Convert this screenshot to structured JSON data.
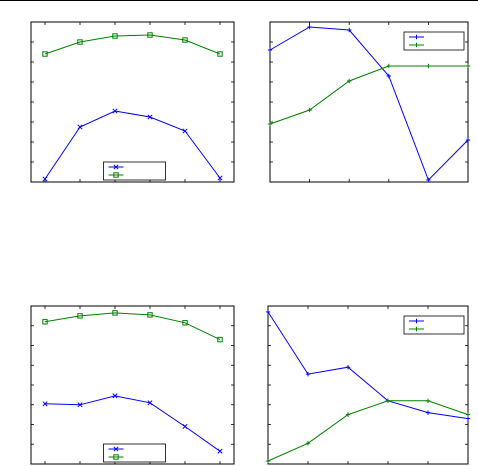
{
  "figure": {
    "background": "#ffffff",
    "axis_color": "#000000"
  },
  "chart_data": [
    {
      "type": "line",
      "panel": "top-left",
      "x": [
        1,
        2,
        3,
        4,
        5,
        6
      ],
      "xlim": [
        0.6,
        6.4
      ],
      "ylim": [
        0,
        8
      ],
      "grid": false,
      "legend": {
        "placement": "bottom-center",
        "boxed": true
      },
      "series": [
        {
          "color": "#0000ff",
          "marker": "x",
          "values": [
            0.15,
            2.75,
            3.55,
            3.25,
            2.55,
            0.2
          ]
        },
        {
          "color": "#008000",
          "marker": "s",
          "values": [
            6.4,
            7.0,
            7.3,
            7.35,
            7.1,
            6.4
          ]
        }
      ]
    },
    {
      "type": "line",
      "panel": "top-right",
      "x": [
        1,
        2,
        3,
        4,
        5,
        6
      ],
      "xlim": [
        1,
        6
      ],
      "ylim": [
        0,
        8
      ],
      "grid": false,
      "legend": {
        "placement": "top-right",
        "boxed": true
      },
      "series": [
        {
          "color": "#0000ff",
          "marker": "+",
          "values": [
            6.6,
            7.75,
            7.6,
            5.3,
            0.1,
            2.1
          ]
        },
        {
          "color": "#008000",
          "marker": "+",
          "values": [
            2.9,
            3.6,
            5.05,
            5.8,
            5.8,
            5.8
          ]
        }
      ]
    },
    {
      "type": "line",
      "panel": "bottom-left",
      "x": [
        1,
        2,
        3,
        4,
        5,
        6
      ],
      "xlim": [
        0.6,
        6.4
      ],
      "ylim": [
        0,
        8
      ],
      "grid": false,
      "legend": {
        "placement": "bottom-center",
        "boxed": true
      },
      "series": [
        {
          "color": "#0000ff",
          "marker": "x",
          "values": [
            3.05,
            3.0,
            3.45,
            3.1,
            1.9,
            0.65
          ]
        },
        {
          "color": "#008000",
          "marker": "s",
          "values": [
            7.2,
            7.5,
            7.65,
            7.55,
            7.15,
            6.3
          ]
        }
      ]
    },
    {
      "type": "line",
      "panel": "bottom-right",
      "x": [
        1,
        2,
        3,
        4,
        5,
        6
      ],
      "xlim": [
        1,
        6
      ],
      "ylim": [
        0,
        8
      ],
      "grid": false,
      "legend": {
        "placement": "top-right",
        "boxed": true
      },
      "series": [
        {
          "color": "#0000ff",
          "marker": "+",
          "values": [
            7.7,
            4.55,
            4.9,
            3.2,
            2.6,
            2.3
          ]
        },
        {
          "color": "#008000",
          "marker": "+",
          "values": [
            0.15,
            1.05,
            2.5,
            3.2,
            3.2,
            2.5
          ]
        }
      ]
    }
  ]
}
